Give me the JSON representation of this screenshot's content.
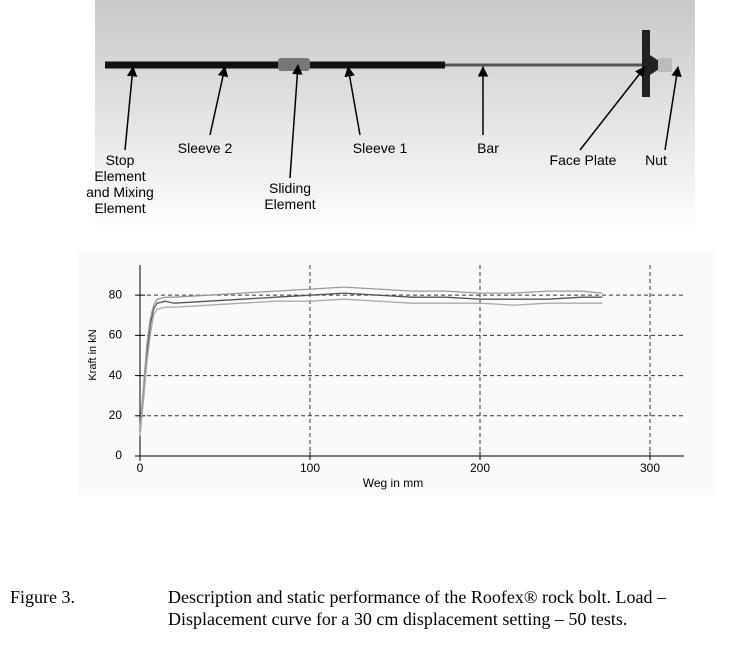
{
  "diagram": {
    "labels": [
      "Stop Element and Mixing Element",
      "Sleeve 2",
      "Sliding Element",
      "Sleeve 1",
      "Bar",
      "Face Plate",
      "Nut"
    ]
  },
  "chart_data": {
    "type": "line",
    "xlabel": "Weg in mm",
    "ylabel": "Kraft in kN",
    "x": [
      0,
      2,
      4,
      6,
      8,
      10,
      15,
      20,
      40,
      60,
      80,
      100,
      120,
      140,
      160,
      180,
      200,
      220,
      240,
      260,
      272
    ],
    "series": [
      {
        "color": "#555555",
        "values": [
          12,
          30,
          50,
          65,
          73,
          76,
          77,
          76,
          77,
          78,
          79,
          80,
          81,
          80,
          79,
          79,
          78,
          78,
          78,
          79,
          79
        ]
      },
      {
        "color": "#999999",
        "values": [
          14,
          34,
          55,
          68,
          75,
          78,
          79,
          79,
          80,
          81,
          82,
          83,
          84,
          83,
          82,
          82,
          81,
          81,
          82,
          82,
          81
        ]
      },
      {
        "color": "#aaaaaa",
        "values": [
          10,
          27,
          46,
          60,
          70,
          73,
          74,
          74,
          75,
          76,
          77,
          77,
          78,
          77,
          76,
          76,
          76,
          75,
          76,
          76,
          76
        ]
      }
    ],
    "xlim": [
      0,
      320
    ],
    "ylim": [
      0,
      95
    ],
    "xticks": [
      0,
      100,
      200,
      300
    ],
    "yticks": [
      0,
      20,
      40,
      60,
      80
    ],
    "grid": true
  },
  "caption": {
    "label": "Figure 3.",
    "text": "Description and static performance of the Roofex® rock bolt. Load – Displacement curve for a 30 cm displacement setting – 50 tests."
  }
}
